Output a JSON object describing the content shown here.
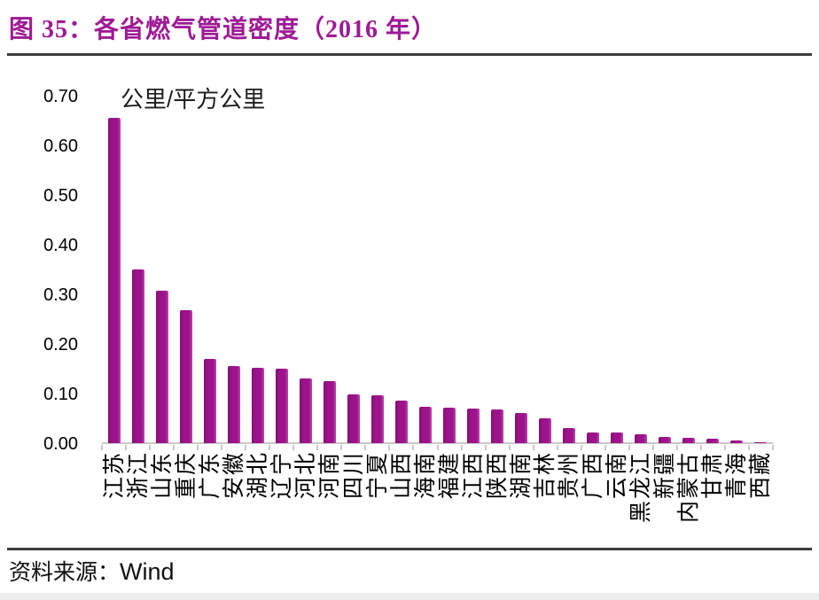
{
  "figure": {
    "title": "图 35：各省燃气管道密度（2016 年）",
    "source_prefix": "资料来源：",
    "source_name": "Wind",
    "title_color": "#9e1a96",
    "divider_color": "#3c3c3c"
  },
  "chart_data": {
    "type": "bar",
    "title": "各省燃气管道密度（2016年）",
    "unit_label": "公里/平方公里",
    "categories": [
      "江苏",
      "浙江",
      "山东",
      "重庆",
      "广东",
      "安徽",
      "湖北",
      "辽宁",
      "河北",
      "河南",
      "四川",
      "宁夏",
      "山西",
      "海南",
      "福建",
      "江西",
      "陕西",
      "湖南",
      "吉林",
      "贵州",
      "广西",
      "云南",
      "黑龙江",
      "新疆",
      "内蒙古",
      "甘肃",
      "青海",
      "西藏"
    ],
    "values": [
      0.655,
      0.35,
      0.307,
      0.267,
      0.17,
      0.155,
      0.151,
      0.15,
      0.131,
      0.125,
      0.098,
      0.096,
      0.086,
      0.073,
      0.071,
      0.069,
      0.067,
      0.061,
      0.05,
      0.03,
      0.021,
      0.021,
      0.018,
      0.012,
      0.011,
      0.009,
      0.005,
      0.002
    ],
    "ylim": [
      0,
      0.7
    ],
    "y_tick_labels": [
      "0.70",
      "0.60",
      "0.50",
      "0.40",
      "0.30",
      "0.20",
      "0.10",
      "0.00"
    ],
    "x_label_rotation": -90,
    "grid": false,
    "legend": "none",
    "bar_color": "#9c138c",
    "axis_color": "#c9c9c9",
    "text_color": "#1d1d1d"
  }
}
